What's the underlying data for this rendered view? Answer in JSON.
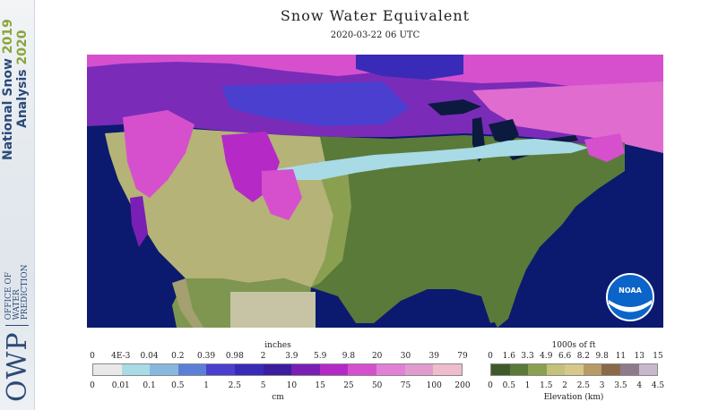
{
  "title": "Snow Water Equivalent",
  "subtitle": "2020-03-22 06 UTC",
  "sidebar": {
    "title_line1": "National Snow",
    "year1": "2019",
    "title_line2": "Analysis",
    "year2": "2020",
    "logo": "OWP",
    "org_line1": "OFFICE OF",
    "org_line2": "WATER",
    "org_line3": "PREDICTION"
  },
  "noaa_label": "NOAA",
  "swe_legend": {
    "top_unit": "inches",
    "top_ticks": [
      "0",
      "4E-3",
      "0.04",
      "0.2",
      "0.39",
      "0.98",
      "2",
      "3.9",
      "5.9",
      "9.8",
      "20",
      "30",
      "39",
      "79"
    ],
    "bottom_ticks": [
      "0",
      "0.01",
      "0.1",
      "0.5",
      "1",
      "2.5",
      "5",
      "10",
      "15",
      "25",
      "50",
      "75",
      "100",
      "200"
    ],
    "bottom_unit": "cm",
    "colors": [
      "#e9e9e9",
      "#a8dbe6",
      "#86b8e0",
      "#5b7fd6",
      "#4a3fcf",
      "#3a2ab8",
      "#3c1d9e",
      "#7a1fb5",
      "#b52ac7",
      "#d650cd",
      "#e27fd6",
      "#e29bcf",
      "#efbccd"
    ]
  },
  "elev_legend": {
    "top_unit": "1000s of ft",
    "top_ticks": [
      "0",
      "1.6",
      "3.3",
      "4.9",
      "6.6",
      "8.2",
      "9.8",
      "11",
      "13",
      "15"
    ],
    "bottom_ticks": [
      "0",
      "0.5",
      "1",
      "1.5",
      "2",
      "2.5",
      "3",
      "3.5",
      "4",
      "4.5"
    ],
    "bottom_unit": "Elevation (km)",
    "colors": [
      "#3f5a2a",
      "#5a7a3a",
      "#8aa050",
      "#c2c27a",
      "#d6c889",
      "#b89a66",
      "#8a6a48",
      "#8f7a8a",
      "#c8b8cc"
    ]
  }
}
